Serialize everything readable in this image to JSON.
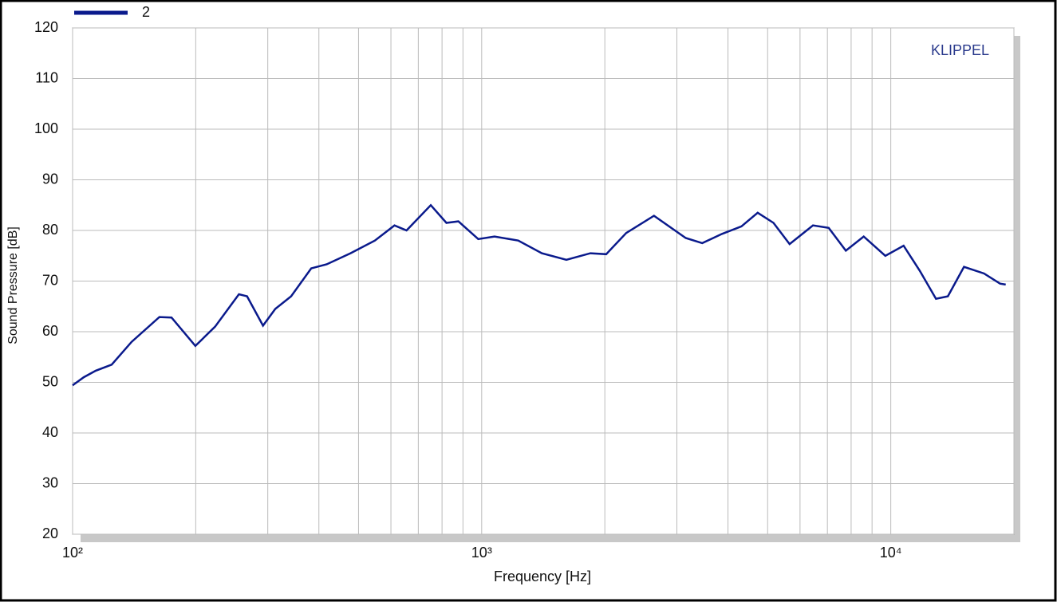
{
  "chart_data": {
    "type": "line",
    "title": "KLIPPEL",
    "xlabel": "Frequency  [Hz]",
    "ylabel": "Sound Pressure  [dB]",
    "log_x": true,
    "grid": true,
    "legend": "top-left",
    "xlim": [
      100,
      20000
    ],
    "ylim": [
      20,
      120
    ],
    "xticks": [
      {
        "value": 100,
        "label": "10²"
      },
      {
        "value": 1000,
        "label": "10³"
      },
      {
        "value": 10000,
        "label": "10⁴"
      }
    ],
    "xgrid": [
      200,
      300,
      400,
      500,
      600,
      700,
      800,
      900,
      2000,
      3000,
      4000,
      5000,
      6000,
      7000,
      8000,
      9000,
      20000
    ],
    "yticks": [
      20,
      30,
      40,
      50,
      60,
      70,
      80,
      90,
      100,
      110,
      120
    ],
    "series": [
      {
        "name": "2",
        "color": "#0a1a8c",
        "x": [
          100,
          106.5,
          113.9,
          124.6,
          139.4,
          163,
          174.5,
          199.6,
          223,
          255,
          267,
          292,
          313,
          342,
          383,
          418,
          478,
          548,
          612,
          655,
          751,
          820,
          877,
          981,
          1075,
          1228,
          1403,
          1611,
          1844,
          2015,
          2256,
          2637,
          3154,
          3460,
          3865,
          4315,
          4729,
          5167,
          5657,
          6453,
          7050,
          7766,
          8586,
          9700,
          10750,
          11780,
          12900,
          13790,
          15100,
          16900,
          18500,
          19100
        ],
        "values": [
          49.4,
          51,
          52.3,
          53.5,
          58,
          62.9,
          62.8,
          57.2,
          61,
          67.4,
          67,
          61.2,
          64.5,
          67,
          72.5,
          73.3,
          75.5,
          78,
          81,
          80,
          85,
          81.5,
          81.8,
          78.3,
          78.8,
          78,
          75.5,
          74.2,
          75.5,
          75.3,
          79.5,
          82.9,
          78.5,
          77.5,
          79.3,
          80.8,
          83.5,
          81.5,
          77.3,
          81,
          80.5,
          76,
          78.8,
          75,
          77,
          72,
          66.5,
          67,
          72.8,
          71.5,
          69.5,
          69.3
        ]
      }
    ]
  }
}
